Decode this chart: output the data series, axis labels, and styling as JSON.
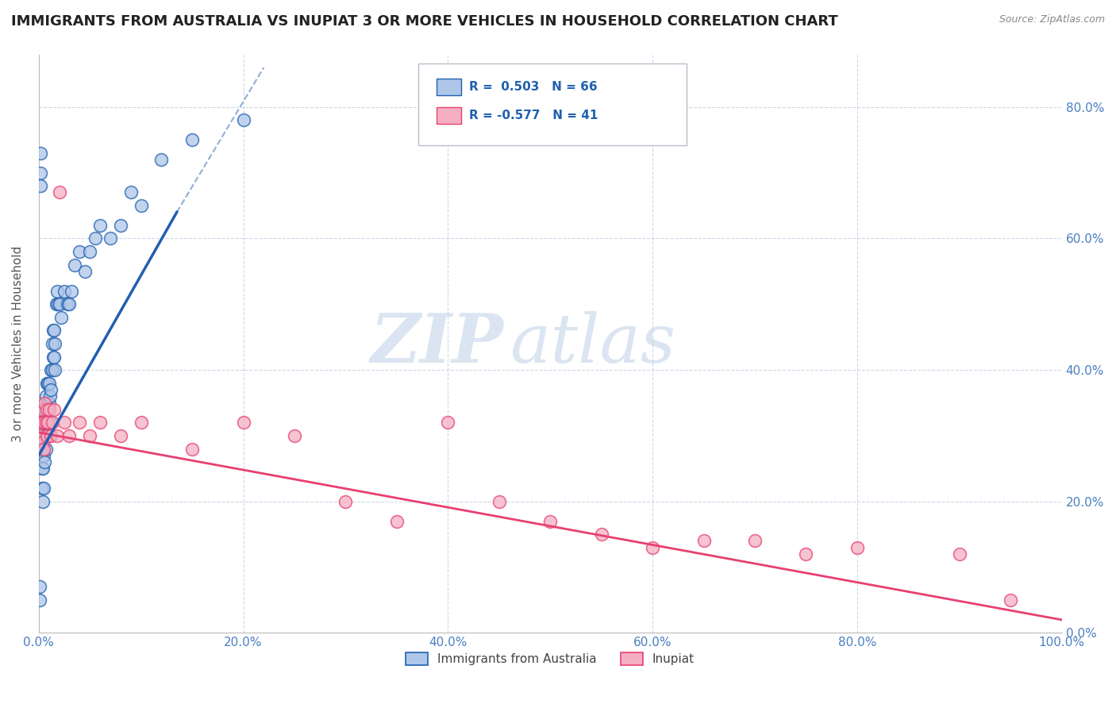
{
  "title": "IMMIGRANTS FROM AUSTRALIA VS INUPIAT 3 OR MORE VEHICLES IN HOUSEHOLD CORRELATION CHART",
  "source": "Source: ZipAtlas.com",
  "ylabel": "3 or more Vehicles in Household",
  "xlim": [
    0.0,
    1.0
  ],
  "ylim": [
    0.0,
    0.88
  ],
  "xticks": [
    0.0,
    0.2,
    0.4,
    0.6,
    0.8,
    1.0
  ],
  "yticks": [
    0.0,
    0.2,
    0.4,
    0.6,
    0.8
  ],
  "xtick_labels": [
    "0.0%",
    "20.0%",
    "40.0%",
    "60.0%",
    "80.0%",
    "100.0%"
  ],
  "ytick_labels_left": [
    "",
    "",
    "",
    "",
    ""
  ],
  "ytick_labels_right": [
    "0.0%",
    "20.0%",
    "40.0%",
    "60.0%",
    "80.0%"
  ],
  "legend_r1": "R =  0.503",
  "legend_n1": "N = 66",
  "legend_r2": "R = -0.577",
  "legend_n2": "N = 41",
  "series1_color": "#aec6e8",
  "series2_color": "#f4afc4",
  "line1_color": "#2060b0",
  "line2_color": "#e84070",
  "legend_label1": "Immigrants from Australia",
  "legend_label2": "Inupiat",
  "background_color": "#ffffff",
  "grid_color": "#c8d4e8",
  "watermark_zip": "ZIP",
  "watermark_atlas": "atlas",
  "title_fontsize": 13,
  "axis_label_fontsize": 11,
  "tick_fontsize": 11,
  "series1_x": [
    0.001,
    0.001,
    0.002,
    0.002,
    0.002,
    0.003,
    0.003,
    0.003,
    0.003,
    0.004,
    0.004,
    0.004,
    0.004,
    0.005,
    0.005,
    0.005,
    0.005,
    0.006,
    0.006,
    0.006,
    0.007,
    0.007,
    0.007,
    0.008,
    0.008,
    0.008,
    0.009,
    0.009,
    0.009,
    0.01,
    0.01,
    0.01,
    0.011,
    0.011,
    0.012,
    0.012,
    0.013,
    0.013,
    0.014,
    0.014,
    0.015,
    0.015,
    0.016,
    0.016,
    0.017,
    0.018,
    0.019,
    0.02,
    0.022,
    0.025,
    0.028,
    0.03,
    0.032,
    0.035,
    0.04,
    0.045,
    0.05,
    0.055,
    0.06,
    0.07,
    0.08,
    0.09,
    0.1,
    0.12,
    0.15,
    0.2
  ],
  "series1_y": [
    0.07,
    0.05,
    0.73,
    0.7,
    0.68,
    0.33,
    0.28,
    0.25,
    0.22,
    0.32,
    0.28,
    0.25,
    0.2,
    0.33,
    0.3,
    0.27,
    0.22,
    0.34,
    0.3,
    0.26,
    0.36,
    0.32,
    0.28,
    0.38,
    0.35,
    0.3,
    0.38,
    0.34,
    0.3,
    0.38,
    0.35,
    0.3,
    0.36,
    0.32,
    0.4,
    0.37,
    0.44,
    0.4,
    0.46,
    0.42,
    0.46,
    0.42,
    0.44,
    0.4,
    0.5,
    0.52,
    0.5,
    0.5,
    0.48,
    0.52,
    0.5,
    0.5,
    0.52,
    0.56,
    0.58,
    0.55,
    0.58,
    0.6,
    0.62,
    0.6,
    0.62,
    0.67,
    0.65,
    0.72,
    0.75,
    0.78
  ],
  "series2_x": [
    0.001,
    0.002,
    0.003,
    0.004,
    0.004,
    0.005,
    0.005,
    0.006,
    0.007,
    0.008,
    0.008,
    0.009,
    0.01,
    0.012,
    0.013,
    0.015,
    0.018,
    0.02,
    0.025,
    0.03,
    0.04,
    0.05,
    0.06,
    0.08,
    0.1,
    0.15,
    0.2,
    0.25,
    0.3,
    0.35,
    0.4,
    0.45,
    0.5,
    0.55,
    0.6,
    0.65,
    0.7,
    0.75,
    0.8,
    0.9,
    0.95
  ],
  "series2_y": [
    0.32,
    0.3,
    0.34,
    0.32,
    0.29,
    0.32,
    0.28,
    0.35,
    0.32,
    0.34,
    0.3,
    0.32,
    0.34,
    0.3,
    0.32,
    0.34,
    0.3,
    0.67,
    0.32,
    0.3,
    0.32,
    0.3,
    0.32,
    0.3,
    0.32,
    0.28,
    0.32,
    0.3,
    0.2,
    0.17,
    0.32,
    0.2,
    0.17,
    0.15,
    0.13,
    0.14,
    0.14,
    0.12,
    0.13,
    0.12,
    0.05
  ],
  "blue_line_x0": 0.0,
  "blue_line_y0": 0.27,
  "blue_line_x1": 0.135,
  "blue_line_y1": 0.64,
  "blue_line_dash_x1": 0.22,
  "blue_line_dash_y1": 0.86,
  "pink_line_x0": 0.0,
  "pink_line_y0": 0.305,
  "pink_line_x1": 1.0,
  "pink_line_y1": 0.02
}
